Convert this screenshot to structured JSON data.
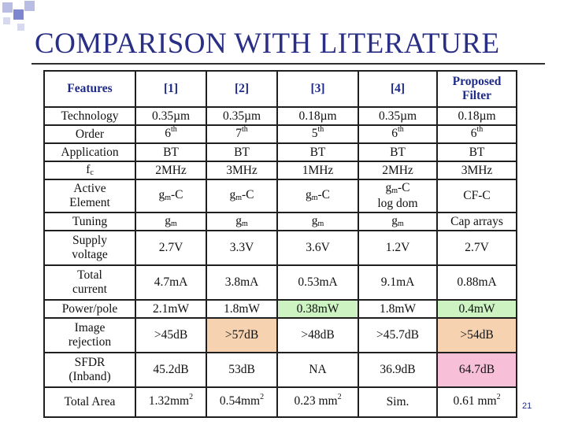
{
  "slide": {
    "title": "COMPARISON WITH LITERATURE",
    "page_number": "21"
  },
  "table": {
    "headers": [
      "Features",
      "[1]",
      "[2]",
      "[3]",
      "[4]",
      "Proposed Filter"
    ],
    "rows": [
      {
        "feature": "Technology",
        "cells": [
          "0.35µm",
          "0.35µm",
          "0.18µm",
          "0.35µm",
          "0.18µm"
        ]
      },
      {
        "feature": "Order",
        "cells": [
          "6th",
          "7th",
          "5th",
          "6th",
          "6th"
        ]
      },
      {
        "feature": "Application",
        "cells": [
          "BT",
          "BT",
          "BT",
          "BT",
          "BT"
        ]
      },
      {
        "feature": "fc",
        "cells": [
          "2MHz",
          "3MHz",
          "1MHz",
          "2MHz",
          "3MHz"
        ]
      },
      {
        "feature": "Active Element",
        "cells": [
          "gm-C",
          "gm-C",
          "gm-C",
          "gm-C log dom",
          "CF-C"
        ]
      },
      {
        "feature": "Tuning",
        "cells": [
          "gm",
          "gm",
          "gm",
          "gm",
          "Cap arrays"
        ]
      },
      {
        "feature": "Supply voltage",
        "cells": [
          "2.7V",
          "3.3V",
          "3.6V",
          "1.2V",
          "2.7V"
        ]
      },
      {
        "feature": "Total current",
        "cells": [
          "4.7mA",
          "3.8mA",
          "0.53mA",
          "9.1mA",
          "0.88mA"
        ]
      },
      {
        "feature": "Power/pole",
        "cells": [
          "2.1mW",
          "1.8mW",
          "0.38mW",
          "1.8mW",
          "0.4mW"
        ]
      },
      {
        "feature": "Image rejection",
        "cells": [
          ">45dB",
          ">57dB",
          ">48dB",
          ">45.7dB",
          ">54dB"
        ]
      },
      {
        "feature": "SFDR (Inband)",
        "cells": [
          "45.2dB",
          "53dB",
          "NA",
          "36.9dB",
          "64.7dB"
        ]
      },
      {
        "feature": "Total Area",
        "cells": [
          "1.32mm2",
          "0.54mm2",
          "0.23 mm2",
          "Sim.",
          "0.61 mm2"
        ]
      }
    ]
  },
  "colors": {
    "title": "#2a2f86",
    "header_text": "#1e2a8a",
    "highlight_green": "#cdf3c2",
    "highlight_orange": "#f7d2b0",
    "highlight_pink": "#f7c0d8"
  }
}
